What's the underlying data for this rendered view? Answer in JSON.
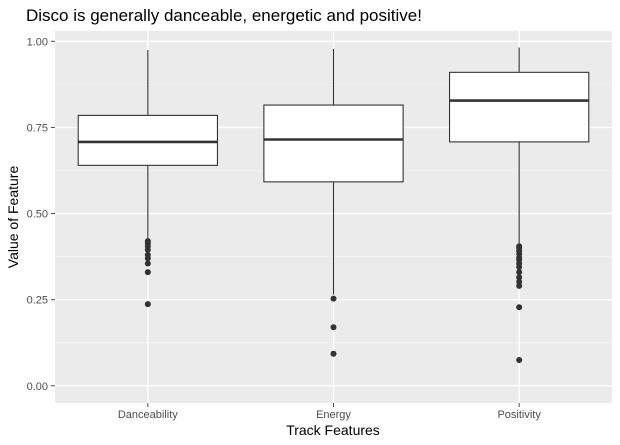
{
  "chart_data": {
    "type": "boxplot",
    "title": "Disco is generally danceable, energetic and positive!",
    "xlabel": "Track Features",
    "ylabel": "Value of Feature",
    "ylim": [
      -0.05,
      1.03
    ],
    "y_ticks": [
      0.0,
      0.25,
      0.5,
      0.75,
      1.0
    ],
    "y_tick_labels": [
      "0.00",
      "0.25",
      "0.50",
      "0.75",
      "1.00"
    ],
    "grid": true,
    "legend": "none",
    "categories": [
      "Danceability",
      "Energy",
      "Positivity"
    ],
    "boxes": [
      {
        "category": "Danceability",
        "whisker_low": 0.425,
        "q1": 0.64,
        "median": 0.708,
        "q3": 0.785,
        "whisker_high": 0.975,
        "outliers": [
          0.42,
          0.413,
          0.405,
          0.395,
          0.38,
          0.37,
          0.355,
          0.33,
          0.237
        ]
      },
      {
        "category": "Energy",
        "whisker_low": 0.265,
        "q1": 0.592,
        "median": 0.715,
        "q3": 0.815,
        "whisker_high": 0.978,
        "outliers": [
          0.253,
          0.17,
          0.093
        ]
      },
      {
        "category": "Positivity",
        "whisker_low": 0.41,
        "q1": 0.708,
        "median": 0.828,
        "q3": 0.91,
        "whisker_high": 0.982,
        "outliers": [
          0.405,
          0.4,
          0.392,
          0.383,
          0.372,
          0.365,
          0.355,
          0.345,
          0.33,
          0.315,
          0.302,
          0.29,
          0.228,
          0.075
        ]
      }
    ]
  },
  "colors": {
    "panel_bg": "#ebebeb",
    "grid_major": "#ffffff",
    "box_fill": "#ffffff",
    "box_stroke": "#333333",
    "outlier": "#333333",
    "tick": "#4d4d4d"
  }
}
